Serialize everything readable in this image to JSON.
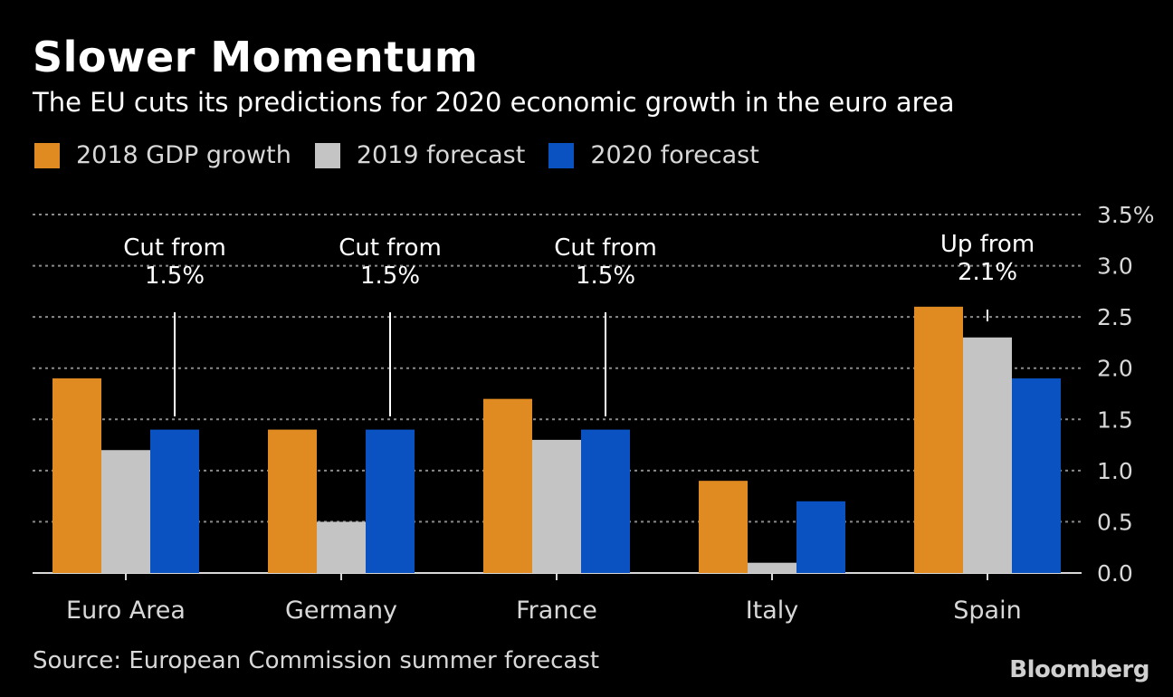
{
  "title": "Slower Momentum",
  "subtitle": "The EU cuts its predictions for 2020 economic growth in the euro area",
  "source": "Source: European Commission summer forecast",
  "brand": "Bloomberg",
  "colors": {
    "series_2018": "#e08a22",
    "series_2019": "#c4c4c4",
    "series_2020": "#0a52c2",
    "grid": "#8a8a8a",
    "axis": "#d8d8d8"
  },
  "chart_data": {
    "type": "bar",
    "title": "Slower Momentum",
    "xlabel": "",
    "ylabel": "",
    "ylim": [
      0,
      3.5
    ],
    "yticks": [
      {
        "value": 0.0,
        "label": "0.0"
      },
      {
        "value": 0.5,
        "label": "0.5"
      },
      {
        "value": 1.0,
        "label": "1.0"
      },
      {
        "value": 1.5,
        "label": "1.5"
      },
      {
        "value": 2.0,
        "label": "2.0"
      },
      {
        "value": 2.5,
        "label": "2.5"
      },
      {
        "value": 3.0,
        "label": "3.0"
      },
      {
        "value": 3.5,
        "label": "3.5%"
      }
    ],
    "grid": true,
    "legend_position": "top-left",
    "categories": [
      "Euro Area",
      "Germany",
      "France",
      "Italy",
      "Spain"
    ],
    "series": [
      {
        "name": "2018 GDP growth",
        "color_key": "series_2018",
        "values": [
          1.9,
          1.4,
          1.7,
          0.9,
          2.6
        ]
      },
      {
        "name": "2019 forecast",
        "color_key": "series_2019",
        "values": [
          1.2,
          0.5,
          1.3,
          0.1,
          2.3
        ]
      },
      {
        "name": "2020 forecast",
        "color_key": "series_2020",
        "values": [
          1.4,
          1.4,
          1.4,
          0.7,
          1.9
        ]
      }
    ],
    "annotations": [
      {
        "category": "Euro Area",
        "series": "2020 forecast",
        "lines": [
          "Cut from",
          "1.5%"
        ],
        "from": 1.5
      },
      {
        "category": "Germany",
        "series": "2020 forecast",
        "lines": [
          "Cut from",
          "1.5%"
        ],
        "from": 1.5
      },
      {
        "category": "France",
        "series": "2020 forecast",
        "lines": [
          "Cut from",
          "1.5%"
        ],
        "from": 1.5
      },
      {
        "category": "Spain",
        "series": "2019 forecast",
        "lines": [
          "Up from",
          "2.1%"
        ],
        "from": 2.1
      }
    ]
  }
}
